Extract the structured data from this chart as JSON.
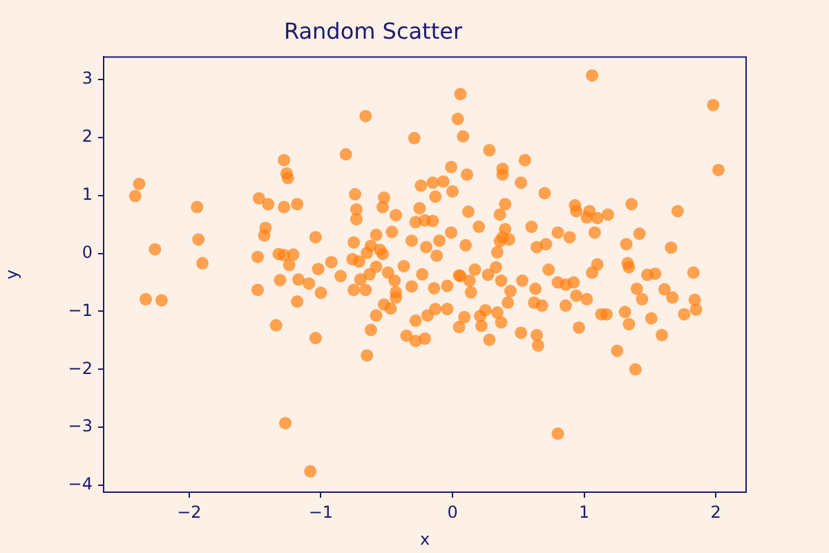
{
  "chart_data": {
    "type": "scatter",
    "title": "Random Scatter",
    "xlabel": "x",
    "ylabel": "y",
    "xlim": [
      -2.65,
      2.23
    ],
    "ylim": [
      -4.12,
      3.39
    ],
    "xticks": [
      -2,
      -1,
      0,
      1,
      2
    ],
    "yticks": [
      -4,
      -3,
      -2,
      -1,
      0,
      1,
      2,
      3
    ],
    "marker": "circle",
    "series": [
      {
        "color": "#ff7f0e",
        "x": [
          -2.38,
          -2.41,
          -2.26,
          -2.33,
          -2.21,
          -1.94,
          -1.93,
          -1.9,
          -1.28,
          -1.26,
          -1.25,
          -1.47,
          -1.4,
          -1.28,
          -1.18,
          -1.42,
          -1.43,
          -1.04,
          -1.48,
          -1.32,
          -1.28,
          -1.21,
          -1.24,
          -1.02,
          -1.31,
          -1.17,
          -1.09,
          -1.0,
          -1.48,
          -1.18,
          -1.34,
          -1.04,
          -1.27,
          -1.08,
          -0.66,
          -0.29,
          -0.81,
          0.06,
          0.04,
          0.08,
          -0.01,
          -0.24,
          -0.15,
          -0.07,
          -0.13,
          0.0,
          -0.74,
          -0.52,
          -0.53,
          -0.73,
          -0.73,
          -0.43,
          -0.25,
          -0.28,
          -0.21,
          -0.15,
          -0.46,
          -0.58,
          -0.01,
          -0.31,
          -0.1,
          -0.2,
          -0.75,
          -0.62,
          -0.55,
          -0.65,
          -0.53,
          -0.12,
          -0.76,
          -0.71,
          -0.92,
          -0.58,
          -0.37,
          -0.49,
          -0.63,
          -0.85,
          -0.7,
          -0.44,
          -0.23,
          0.05,
          -0.75,
          -0.66,
          -0.31,
          -0.43,
          -0.43,
          -0.14,
          -0.04,
          -0.52,
          -0.47,
          -0.58,
          -0.28,
          -0.19,
          -0.13,
          -0.04,
          -0.62,
          -0.35,
          -0.28,
          -0.21,
          0.05,
          -0.65,
          1.06,
          0.28,
          0.55,
          0.38,
          0.38,
          0.52,
          0.11,
          0.7,
          0.4,
          0.36,
          0.12,
          0.2,
          0.4,
          0.6,
          0.1,
          0.38,
          0.43,
          0.36,
          0.64,
          0.71,
          0.8,
          0.89,
          0.93,
          0.94,
          1.04,
          1.02,
          1.08,
          0.34,
          0.33,
          0.17,
          0.27,
          0.06,
          0.13,
          0.37,
          0.44,
          0.53,
          0.73,
          0.63,
          0.8,
          0.86,
          0.92,
          0.94,
          1.02,
          1.1,
          1.06,
          0.14,
          0.42,
          0.62,
          0.68,
          0.86,
          0.25,
          0.21,
          0.34,
          0.09,
          0.22,
          0.37,
          0.28,
          0.52,
          0.64,
          0.65,
          0.96,
          0.8,
          1.13,
          1.98,
          2.02,
          1.36,
          1.71,
          1.18,
          1.1,
          1.42,
          1.32,
          1.66,
          1.33,
          1.34,
          1.48,
          1.54,
          1.83,
          1.4,
          1.44,
          1.61,
          1.67,
          1.84,
          1.85,
          1.76,
          1.51,
          1.31,
          1.34,
          1.17,
          1.59,
          1.25,
          1.39
        ],
        "values": [
          1.2,
          0.99,
          0.07,
          -0.79,
          -0.81,
          0.8,
          0.24,
          -0.17,
          1.61,
          1.38,
          1.3,
          0.95,
          0.85,
          0.8,
          0.85,
          0.44,
          0.31,
          0.28,
          -0.06,
          -0.01,
          -0.03,
          -0.02,
          -0.2,
          -0.27,
          -0.46,
          -0.45,
          -0.52,
          -0.68,
          -0.63,
          -0.83,
          -1.24,
          -1.46,
          -2.93,
          -3.76,
          2.37,
          1.99,
          1.71,
          2.75,
          2.32,
          2.02,
          1.49,
          1.17,
          1.22,
          1.24,
          0.98,
          1.07,
          1.02,
          0.96,
          0.8,
          0.76,
          0.59,
          0.66,
          0.78,
          0.54,
          0.57,
          0.56,
          0.37,
          0.32,
          0.36,
          0.22,
          0.22,
          0.11,
          0.19,
          0.13,
          0.06,
          0.01,
          -0.01,
          -0.04,
          -0.1,
          -0.14,
          -0.15,
          -0.23,
          -0.22,
          -0.33,
          -0.36,
          -0.39,
          -0.45,
          -0.47,
          -0.36,
          -0.38,
          -0.63,
          -0.63,
          -0.57,
          -0.67,
          -0.76,
          -0.6,
          -0.56,
          -0.88,
          -0.95,
          -1.07,
          -1.16,
          -1.07,
          -0.96,
          -0.96,
          -1.32,
          -1.42,
          -1.51,
          -1.47,
          -1.27,
          -1.76,
          3.07,
          1.78,
          1.61,
          1.46,
          1.36,
          1.22,
          1.36,
          1.04,
          0.85,
          0.67,
          0.72,
          0.46,
          0.42,
          0.46,
          0.14,
          0.28,
          0.24,
          0.21,
          0.11,
          0.16,
          0.36,
          0.28,
          0.83,
          0.73,
          0.73,
          0.62,
          0.36,
          0.02,
          -0.24,
          -0.28,
          -0.37,
          -0.39,
          -0.47,
          -0.47,
          -0.65,
          -0.47,
          -0.28,
          -0.61,
          -0.5,
          -0.54,
          -0.5,
          -0.73,
          -0.79,
          -0.19,
          -0.33,
          -0.67,
          -0.85,
          -0.85,
          -0.9,
          -0.9,
          -0.98,
          -1.08,
          -1.02,
          -1.1,
          -1.25,
          -1.19,
          -1.49,
          -1.37,
          -1.41,
          -1.59,
          -1.28,
          -3.11,
          -1.05,
          2.56,
          1.44,
          0.85,
          0.73,
          0.67,
          0.61,
          0.34,
          0.16,
          0.1,
          -0.17,
          -0.24,
          -0.37,
          -0.35,
          -0.33,
          -0.61,
          -0.79,
          -0.62,
          -0.76,
          -0.8,
          -0.97,
          -1.05,
          -1.12,
          -1.01,
          -1.22,
          -1.05,
          -1.41,
          -1.68,
          -2.0
        ]
      }
    ]
  }
}
